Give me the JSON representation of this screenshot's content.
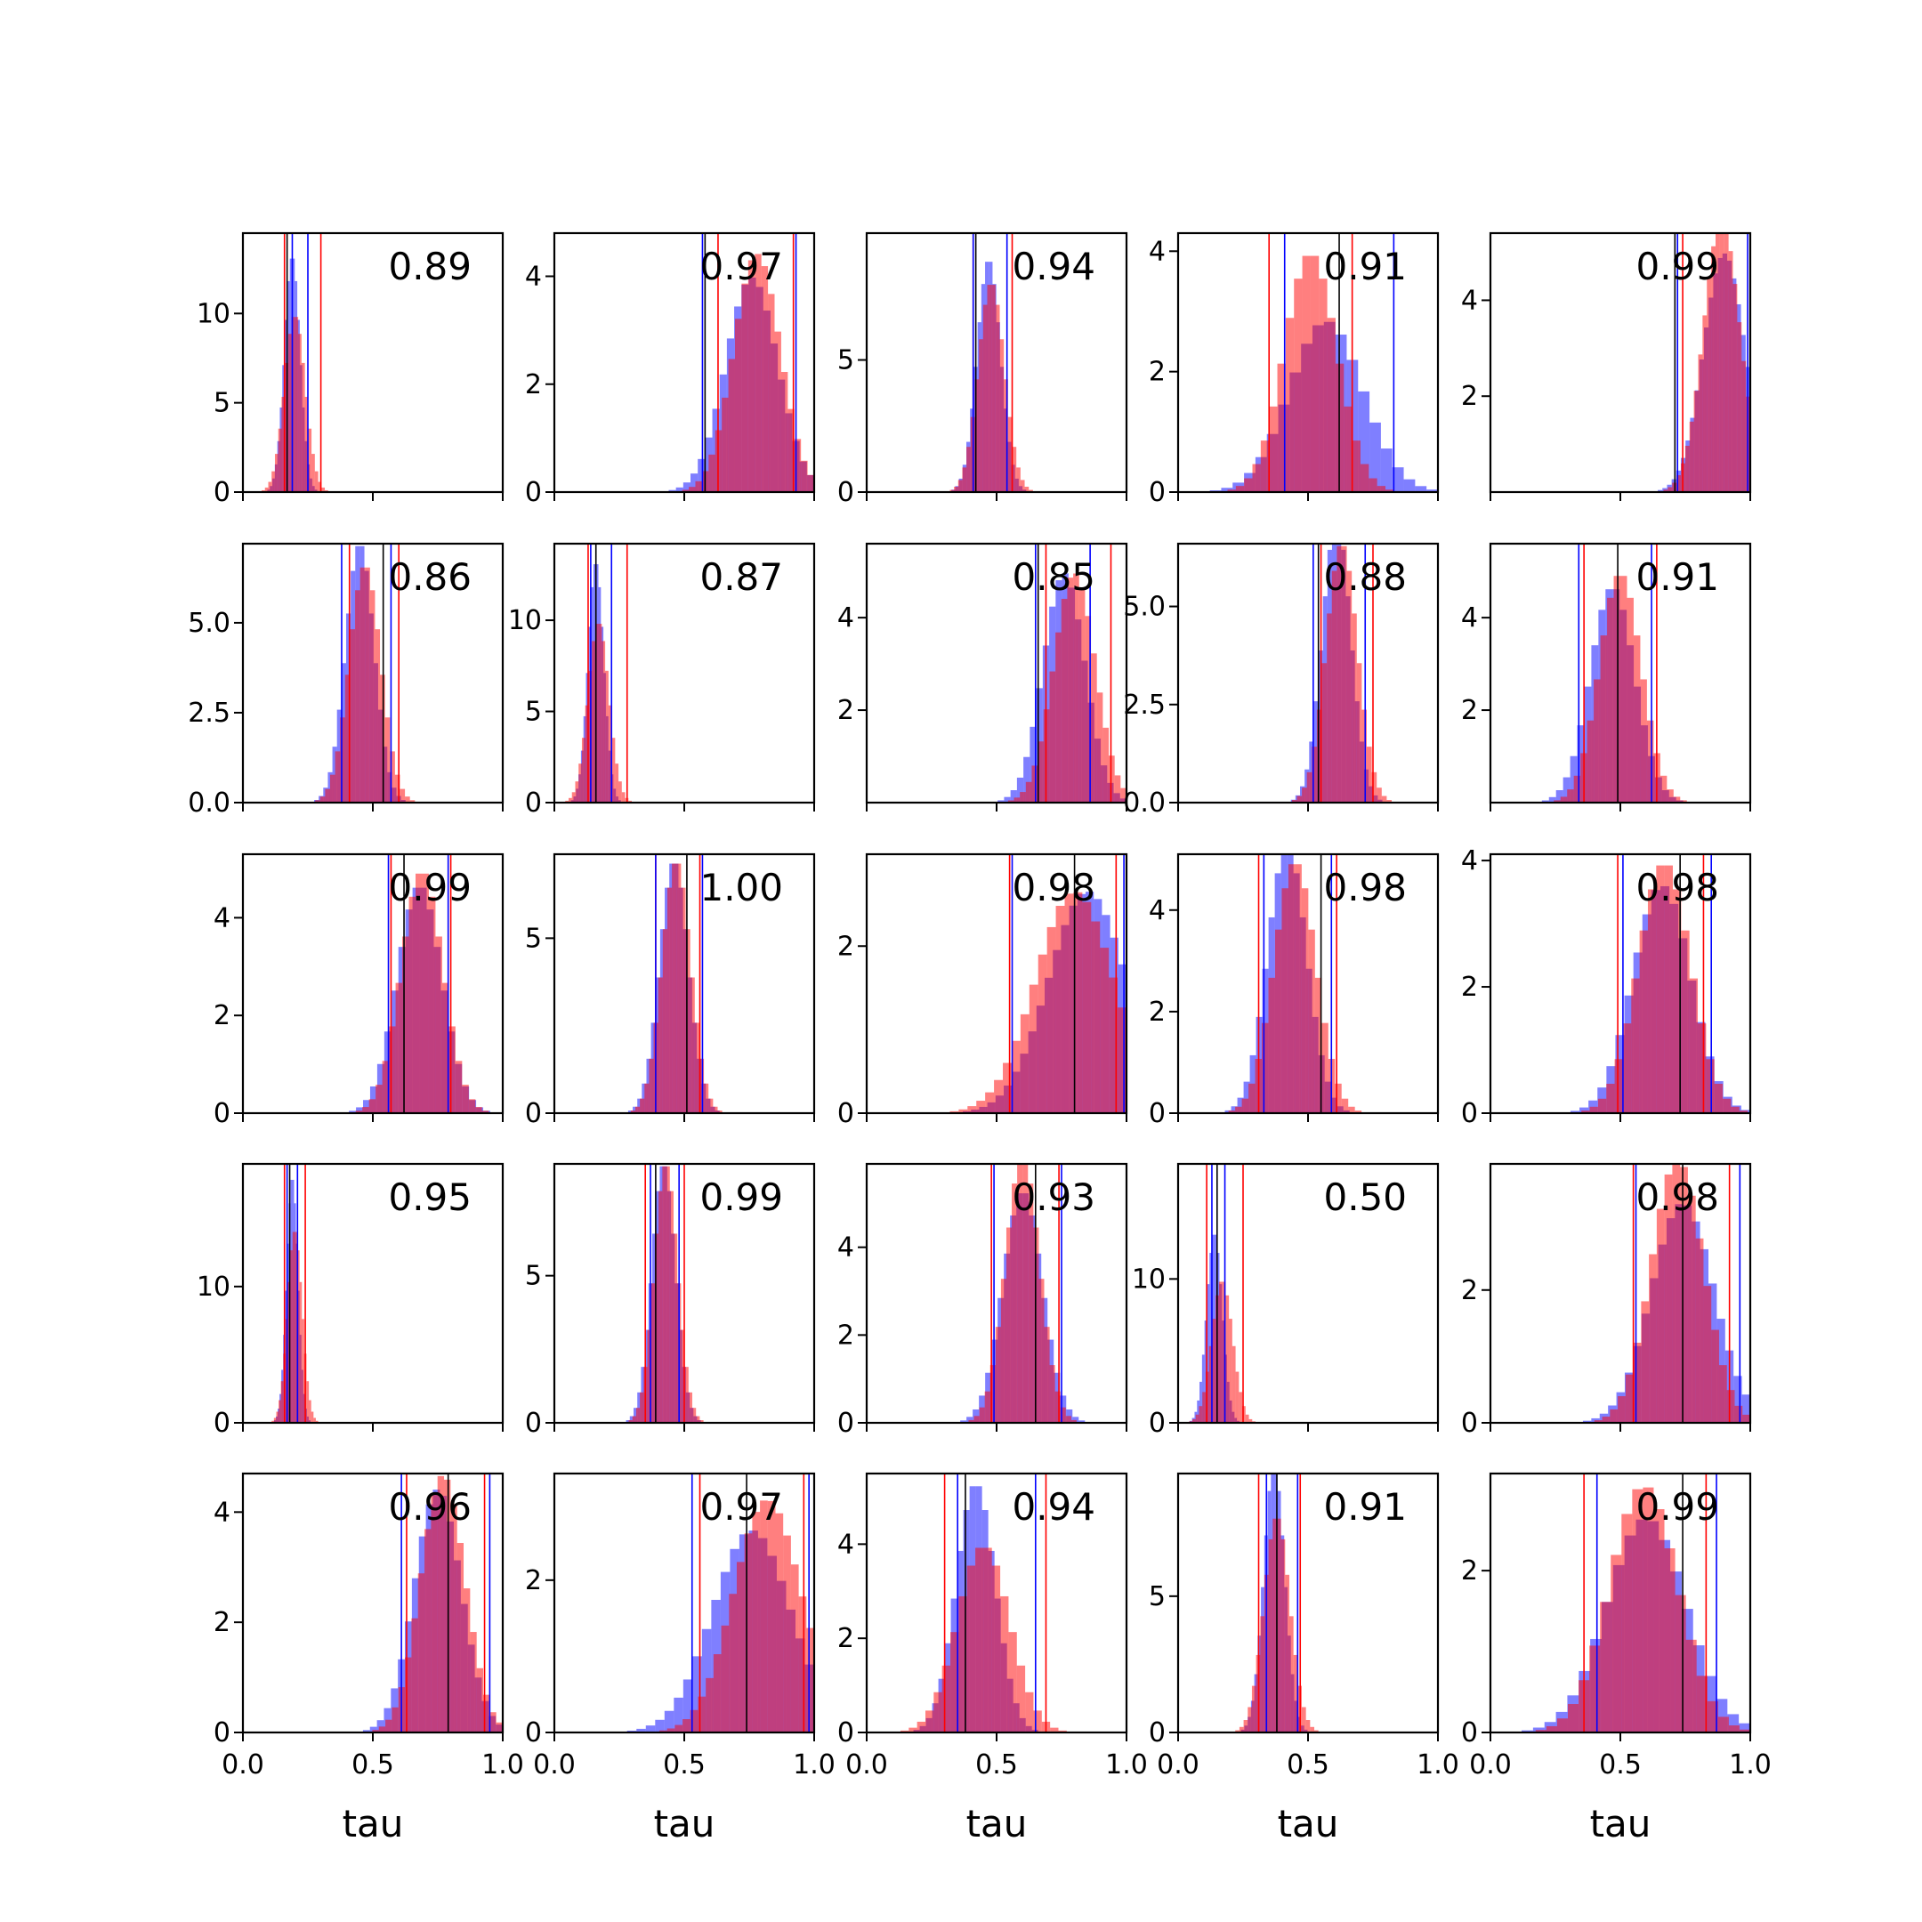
{
  "chart_data": {
    "type": "histogram-grid",
    "rows": 5,
    "cols": 5,
    "xlabel": "tau",
    "xlim": [
      0,
      1
    ],
    "xticks": [
      "0.0",
      "0.5",
      "1.0"
    ],
    "colors": {
      "blue": "#0000ff",
      "red": "#ff0000",
      "black": "#000000"
    },
    "panels": [
      {
        "label": "0.89",
        "ylim": [
          0,
          14.5
        ],
        "yticks": [
          {
            "v": 0,
            "t": "0"
          },
          {
            "v": 5,
            "t": "5"
          },
          {
            "v": 10,
            "t": "10"
          }
        ],
        "blue": {
          "mean": 0.19,
          "sd": 0.03
        },
        "red": {
          "mean": 0.2,
          "sd": 0.04
        },
        "blue_lines": [
          0.19,
          0.25
        ],
        "red_lines": [
          0.16,
          0.3
        ],
        "black_lines": [
          0.17
        ]
      },
      {
        "label": "0.97",
        "ylim": [
          0,
          4.8
        ],
        "yticks": [
          {
            "v": 0,
            "t": "0"
          },
          {
            "v": 2,
            "t": "2"
          },
          {
            "v": 4,
            "t": "4"
          }
        ],
        "blue": {
          "mean": 0.76,
          "sd": 0.1
        },
        "red": {
          "mean": 0.78,
          "sd": 0.09
        },
        "blue_lines": [
          0.57,
          0.93
        ],
        "red_lines": [
          0.63,
          0.92
        ],
        "black_lines": [
          0.58
        ]
      },
      {
        "label": "0.94",
        "ylim": [
          0,
          9.8
        ],
        "yticks": [
          {
            "v": 0,
            "t": "0"
          },
          {
            "v": 5,
            "t": "5"
          }
        ],
        "blue": {
          "mean": 0.47,
          "sd": 0.045
        },
        "red": {
          "mean": 0.48,
          "sd": 0.05
        },
        "blue_lines": [
          0.41,
          0.54
        ],
        "red_lines": [
          0.41,
          0.56
        ],
        "black_lines": [
          0.42
        ]
      },
      {
        "label": "0.91",
        "ylim": [
          0,
          4.3
        ],
        "yticks": [
          {
            "v": 0,
            "t": "0"
          },
          {
            "v": 2,
            "t": "2"
          },
          {
            "v": 4,
            "t": "4"
          }
        ],
        "blue": {
          "mean": 0.57,
          "sd": 0.14
        },
        "red": {
          "mean": 0.51,
          "sd": 0.1
        },
        "blue_lines": [
          0.41,
          0.83
        ],
        "red_lines": [
          0.35,
          0.67
        ],
        "black_lines": [
          0.62
        ]
      },
      {
        "label": "0.99",
        "ylim": [
          0,
          5.4
        ],
        "yticks": [
          {
            "v": 2,
            "t": "2"
          },
          {
            "v": 4,
            "t": "4"
          }
        ],
        "blue": {
          "mean": 0.9,
          "sd": 0.08
        },
        "red": {
          "mean": 0.89,
          "sd": 0.07
        },
        "blue_lines": [
          0.72,
          0.99
        ],
        "red_lines": [
          0.74,
          1.0
        ],
        "black_lines": [
          0.71
        ]
      },
      {
        "label": "0.86",
        "ylim": [
          0,
          7.2
        ],
        "yticks": [
          {
            "v": 0,
            "t": "0.0"
          },
          {
            "v": 2.5,
            "t": "2.5"
          },
          {
            "v": 5,
            "t": "5.0"
          }
        ],
        "blue": {
          "mean": 0.45,
          "sd": 0.055
        },
        "red": {
          "mean": 0.47,
          "sd": 0.06
        },
        "blue_lines": [
          0.38,
          0.57
        ],
        "red_lines": [
          0.41,
          0.6
        ],
        "black_lines": [
          0.54
        ]
      },
      {
        "label": "0.87",
        "ylim": [
          0,
          14.2
        ],
        "yticks": [
          {
            "v": 0,
            "t": "0"
          },
          {
            "v": 5,
            "t": "5"
          },
          {
            "v": 10,
            "t": "10"
          }
        ],
        "blue": {
          "mean": 0.16,
          "sd": 0.03
        },
        "red": {
          "mean": 0.17,
          "sd": 0.04
        },
        "blue_lines": [
          0.14,
          0.22
        ],
        "red_lines": [
          0.13,
          0.28
        ],
        "black_lines": [
          0.16
        ]
      },
      {
        "label": "0.85",
        "ylim": [
          0,
          5.6
        ],
        "yticks": [
          {
            "v": 2,
            "t": "2"
          },
          {
            "v": 4,
            "t": "4"
          }
        ],
        "blue": {
          "mean": 0.76,
          "sd": 0.08
        },
        "red": {
          "mean": 0.8,
          "sd": 0.08
        },
        "blue_lines": [
          0.65,
          0.86
        ],
        "red_lines": [
          0.69,
          0.94
        ],
        "black_lines": [
          0.66
        ]
      },
      {
        "label": "0.88",
        "ylim": [
          0,
          6.6
        ],
        "yticks": [
          {
            "v": 0,
            "t": "0.0"
          },
          {
            "v": 2.5,
            "t": "2.5"
          },
          {
            "v": 5,
            "t": "5.0"
          }
        ],
        "blue": {
          "mean": 0.61,
          "sd": 0.055
        },
        "red": {
          "mean": 0.63,
          "sd": 0.06
        },
        "blue_lines": [
          0.52,
          0.72
        ],
        "red_lines": [
          0.55,
          0.75
        ],
        "black_lines": [
          0.54
        ]
      },
      {
        "label": "0.91",
        "ylim": [
          0,
          5.6
        ],
        "yticks": [
          {
            "v": 2,
            "t": "2"
          },
          {
            "v": 4,
            "t": "4"
          }
        ],
        "blue": {
          "mean": 0.47,
          "sd": 0.085
        },
        "red": {
          "mean": 0.5,
          "sd": 0.08
        },
        "blue_lines": [
          0.34,
          0.62
        ],
        "red_lines": [
          0.36,
          0.64
        ],
        "black_lines": [
          0.49
        ]
      },
      {
        "label": "0.99",
        "ylim": [
          0,
          5.3
        ],
        "yticks": [
          {
            "v": 0,
            "t": "0"
          },
          {
            "v": 2,
            "t": "2"
          },
          {
            "v": 4,
            "t": "4"
          }
        ],
        "blue": {
          "mean": 0.68,
          "sd": 0.085
        },
        "red": {
          "mean": 0.69,
          "sd": 0.08
        },
        "blue_lines": [
          0.56,
          0.79
        ],
        "red_lines": [
          0.57,
          0.8
        ],
        "black_lines": [
          0.62
        ]
      },
      {
        "label": "1.00",
        "ylim": [
          0,
          7.4
        ],
        "yticks": [
          {
            "v": 0,
            "t": "0"
          },
          {
            "v": 5,
            "t": "5"
          }
        ],
        "blue": {
          "mean": 0.46,
          "sd": 0.055
        },
        "red": {
          "mean": 0.47,
          "sd": 0.055
        },
        "blue_lines": [
          0.39,
          0.57
        ],
        "red_lines": [
          0.39,
          0.56
        ],
        "black_lines": [
          0.51
        ]
      },
      {
        "label": "0.98",
        "ylim": [
          0,
          3.1
        ],
        "yticks": [
          {
            "v": 0,
            "t": "0"
          },
          {
            "v": 2,
            "t": "2"
          }
        ],
        "blue": {
          "mean": 0.85,
          "sd": 0.15
        },
        "red": {
          "mean": 0.8,
          "sd": 0.15
        },
        "blue_lines": [
          0.56,
          0.99
        ],
        "red_lines": [
          0.55,
          0.96
        ],
        "black_lines": [
          0.8
        ]
      },
      {
        "label": "0.98",
        "ylim": [
          0,
          5.1
        ],
        "yticks": [
          {
            "v": 0,
            "t": "0"
          },
          {
            "v": 2,
            "t": "2"
          },
          {
            "v": 4,
            "t": "4"
          }
        ],
        "blue": {
          "mean": 0.42,
          "sd": 0.075
        },
        "red": {
          "mean": 0.45,
          "sd": 0.08
        },
        "blue_lines": [
          0.33,
          0.59
        ],
        "red_lines": [
          0.31,
          0.61
        ],
        "black_lines": [
          0.55
        ]
      },
      {
        "label": "0.98",
        "ylim": [
          0,
          4.1
        ],
        "yticks": [
          {
            "v": 0,
            "t": "0"
          },
          {
            "v": 2,
            "t": "2"
          },
          {
            "v": 4,
            "t": "4"
          }
        ],
        "blue": {
          "mean": 0.66,
          "sd": 0.11
        },
        "red": {
          "mean": 0.67,
          "sd": 0.1
        },
        "blue_lines": [
          0.51,
          0.85
        ],
        "red_lines": [
          0.49,
          0.82
        ],
        "black_lines": [
          0.73
        ]
      },
      {
        "label": "0.95",
        "ylim": [
          0,
          19
        ],
        "yticks": [
          {
            "v": 0,
            "t": "0"
          },
          {
            "v": 10,
            "t": "10"
          }
        ],
        "blue": {
          "mean": 0.19,
          "sd": 0.022
        },
        "red": {
          "mean": 0.2,
          "sd": 0.028
        },
        "blue_lines": [
          0.17,
          0.21
        ],
        "red_lines": [
          0.16,
          0.24
        ],
        "black_lines": [
          0.18
        ]
      },
      {
        "label": "0.99",
        "ylim": [
          0,
          8.8
        ],
        "yticks": [
          {
            "v": 0,
            "t": "0"
          },
          {
            "v": 5,
            "t": "5"
          }
        ],
        "blue": {
          "mean": 0.42,
          "sd": 0.045
        },
        "red": {
          "mean": 0.43,
          "sd": 0.045
        },
        "blue_lines": [
          0.37,
          0.48
        ],
        "red_lines": [
          0.35,
          0.5
        ],
        "black_lines": [
          0.39
        ]
      },
      {
        "label": "0.93",
        "ylim": [
          0,
          5.9
        ],
        "yticks": [
          {
            "v": 0,
            "t": "0"
          },
          {
            "v": 2,
            "t": "2"
          },
          {
            "v": 4,
            "t": "4"
          }
        ],
        "blue": {
          "mean": 0.6,
          "sd": 0.075
        },
        "red": {
          "mean": 0.6,
          "sd": 0.065
        },
        "blue_lines": [
          0.49,
          0.75
        ],
        "red_lines": [
          0.48,
          0.74
        ],
        "black_lines": [
          0.65
        ]
      },
      {
        "label": "0.50",
        "ylim": [
          0,
          18
        ],
        "yticks": [
          {
            "v": 0,
            "t": "0"
          },
          {
            "v": 10,
            "t": "10"
          }
        ],
        "blue": {
          "mean": 0.14,
          "sd": 0.03
        },
        "red": {
          "mean": 0.17,
          "sd": 0.04
        },
        "blue_lines": [
          0.13,
          0.18
        ],
        "red_lines": [
          0.11,
          0.25
        ],
        "black_lines": [
          0.15
        ]
      },
      {
        "label": "0.98",
        "ylim": [
          0,
          3.9
        ],
        "yticks": [
          {
            "v": 0,
            "t": "0"
          },
          {
            "v": 2,
            "t": "2"
          }
        ],
        "blue": {
          "mean": 0.74,
          "sd": 0.12
        },
        "red": {
          "mean": 0.72,
          "sd": 0.1
        },
        "blue_lines": [
          0.56,
          0.96
        ],
        "red_lines": [
          0.55,
          0.92
        ],
        "black_lines": [
          0.74
        ]
      },
      {
        "label": "0.96",
        "ylim": [
          0,
          4.7
        ],
        "yticks": [
          {
            "v": 0,
            "t": "0"
          },
          {
            "v": 2,
            "t": "2"
          },
          {
            "v": 4,
            "t": "4"
          }
        ],
        "blue": {
          "mean": 0.75,
          "sd": 0.09
        },
        "red": {
          "mean": 0.77,
          "sd": 0.085
        },
        "blue_lines": [
          0.61,
          0.95
        ],
        "red_lines": [
          0.63,
          0.93
        ],
        "black_lines": [
          0.79
        ]
      },
      {
        "label": "0.97",
        "ylim": [
          0,
          3.4
        ],
        "yticks": [
          {
            "v": 0,
            "t": "0"
          },
          {
            "v": 2,
            "t": "2"
          }
        ],
        "blue": {
          "mean": 0.76,
          "sd": 0.15
        },
        "red": {
          "mean": 0.82,
          "sd": 0.13
        },
        "blue_lines": [
          0.53,
          0.98
        ],
        "red_lines": [
          0.56,
          0.96
        ],
        "black_lines": [
          0.74
        ]
      },
      {
        "label": "0.94",
        "ylim": [
          0,
          5.5
        ],
        "yticks": [
          {
            "v": 0,
            "t": "0"
          },
          {
            "v": 2,
            "t": "2"
          },
          {
            "v": 4,
            "t": "4"
          }
        ],
        "blue": {
          "mean": 0.42,
          "sd": 0.075
        },
        "red": {
          "mean": 0.45,
          "sd": 0.1
        },
        "blue_lines": [
          0.35,
          0.65
        ],
        "red_lines": [
          0.3,
          0.69
        ],
        "black_lines": [
          0.38
        ]
      },
      {
        "label": "0.91",
        "ylim": [
          0,
          9.5
        ],
        "yticks": [
          {
            "v": 0,
            "t": "0"
          },
          {
            "v": 5,
            "t": "5"
          }
        ],
        "blue": {
          "mean": 0.37,
          "sd": 0.04
        },
        "red": {
          "mean": 0.38,
          "sd": 0.05
        },
        "blue_lines": [
          0.34,
          0.46
        ],
        "red_lines": [
          0.31,
          0.47
        ],
        "black_lines": [
          0.38
        ]
      },
      {
        "label": "0.99",
        "ylim": [
          0,
          3.2
        ],
        "yticks": [
          {
            "v": 0,
            "t": "0"
          },
          {
            "v": 2,
            "t": "2"
          }
        ],
        "blue": {
          "mean": 0.6,
          "sd": 0.15
        },
        "red": {
          "mean": 0.59,
          "sd": 0.13
        },
        "blue_lines": [
          0.41,
          0.87
        ],
        "red_lines": [
          0.36,
          0.83
        ],
        "black_lines": [
          0.74
        ]
      }
    ]
  }
}
